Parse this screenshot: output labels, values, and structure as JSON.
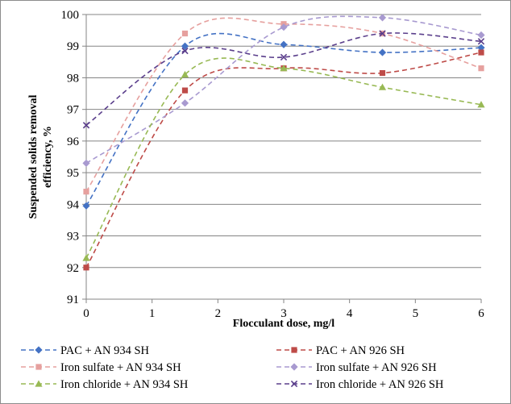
{
  "chart_data": {
    "type": "line",
    "title": "",
    "xlabel": "Flocculant dose, mg/l",
    "ylabel_lines": [
      "Suspended solids removal",
      "efficiency, %"
    ],
    "xlim": [
      0,
      6
    ],
    "ylim": [
      91,
      100
    ],
    "x_ticks": [
      "0",
      "1",
      "2",
      "3",
      "4",
      "5",
      "6"
    ],
    "y_ticks": [
      "91",
      "92",
      "93",
      "94",
      "95",
      "96",
      "97",
      "98",
      "99",
      "100"
    ],
    "grid": true,
    "legend_position": "bottom",
    "x": [
      0,
      1.5,
      3,
      4.5,
      6
    ],
    "series": [
      {
        "name": "PAC + AN 934 SH",
        "values": [
          93.95,
          99.0,
          99.05,
          98.8,
          98.95
        ],
        "color": "#4472c4",
        "marker": "diamond"
      },
      {
        "name": "PAC + AN 926 SH",
        "values": [
          92.0,
          97.6,
          98.3,
          98.15,
          98.8
        ],
        "color": "#be4b48",
        "marker": "square"
      },
      {
        "name": "Iron sulfate + AN 934 SH",
        "values": [
          94.4,
          99.4,
          99.7,
          99.4,
          98.3
        ],
        "color": "#e6a09e",
        "marker": "square"
      },
      {
        "name": "Iron sulfate + AN 926 SH",
        "values": [
          95.3,
          97.2,
          99.6,
          99.9,
          99.35
        ],
        "color": "#a89ad0",
        "marker": "diamond"
      },
      {
        "name": "Iron chloride + AN 934 SH",
        "values": [
          92.3,
          98.1,
          98.3,
          97.7,
          97.15
        ],
        "color": "#98b954",
        "marker": "triangle"
      },
      {
        "name": "Iron chloride + AN 926 SH",
        "values": [
          96.5,
          98.85,
          98.65,
          99.4,
          99.15
        ],
        "color": "#5b3f8c",
        "marker": "x"
      }
    ]
  }
}
